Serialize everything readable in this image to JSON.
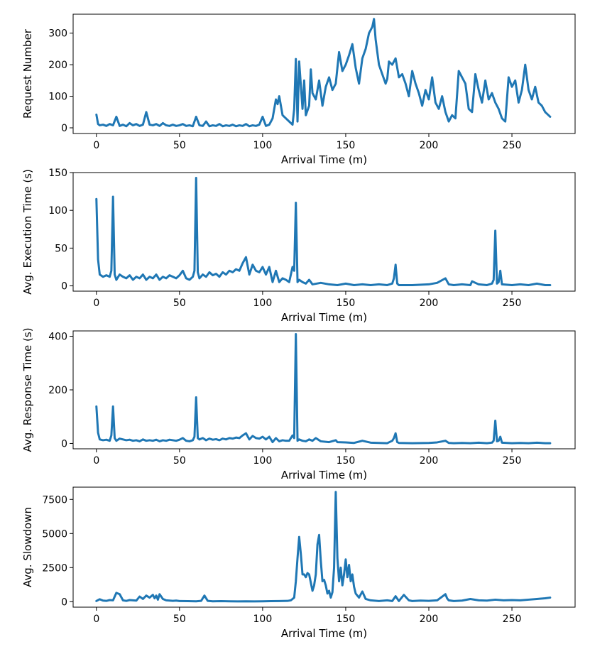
{
  "chart_data": [
    {
      "type": "line",
      "xlabel": "Arrival Time (m)",
      "ylabel": "Request Number",
      "xlim": [
        -14,
        288
      ],
      "ylim": [
        -18,
        360
      ],
      "xticks": [
        0,
        50,
        100,
        150,
        200,
        250
      ],
      "xtick_labels": [
        "0",
        "50",
        "100",
        "150",
        "200",
        "250"
      ],
      "yticks": [
        0,
        100,
        200,
        300
      ],
      "ytick_labels": [
        "0",
        "100",
        "200",
        "300"
      ],
      "color": "#1f77b4",
      "series": [
        {
          "name": "Request Number",
          "x": [
            0,
            1,
            2,
            4,
            6,
            8,
            10,
            12,
            14,
            16,
            18,
            20,
            22,
            24,
            26,
            28,
            30,
            32,
            34,
            36,
            38,
            40,
            42,
            44,
            46,
            48,
            50,
            52,
            54,
            56,
            58,
            60,
            62,
            64,
            66,
            68,
            70,
            72,
            74,
            76,
            78,
            80,
            82,
            84,
            86,
            88,
            90,
            92,
            94,
            96,
            98,
            100,
            102,
            104,
            106,
            108,
            109,
            110,
            112,
            114,
            116,
            118,
            119,
            120,
            121,
            122,
            124,
            125,
            126,
            128,
            129,
            130,
            132,
            134,
            136,
            138,
            140,
            142,
            144,
            146,
            148,
            150,
            152,
            154,
            156,
            158,
            160,
            162,
            164,
            166,
            167,
            168,
            170,
            172,
            174,
            175,
            176,
            178,
            180,
            182,
            184,
            186,
            188,
            190,
            192,
            194,
            196,
            198,
            200,
            202,
            204,
            206,
            208,
            210,
            212,
            214,
            216,
            218,
            220,
            222,
            224,
            226,
            228,
            230,
            232,
            234,
            236,
            238,
            240,
            242,
            244,
            246,
            248,
            250,
            252,
            254,
            256,
            258,
            260,
            262,
            264,
            266,
            268,
            270,
            272,
            273
          ],
          "y": [
            42,
            12,
            8,
            10,
            6,
            12,
            8,
            35,
            6,
            10,
            5,
            15,
            8,
            12,
            6,
            10,
            50,
            10,
            8,
            12,
            6,
            15,
            8,
            6,
            10,
            6,
            8,
            12,
            6,
            8,
            5,
            35,
            8,
            6,
            20,
            5,
            8,
            6,
            12,
            5,
            8,
            6,
            10,
            5,
            8,
            6,
            12,
            5,
            8,
            6,
            10,
            35,
            6,
            10,
            30,
            90,
            75,
            100,
            40,
            30,
            20,
            10,
            60,
            218,
            20,
            210,
            60,
            150,
            40,
            70,
            185,
            110,
            90,
            150,
            70,
            130,
            160,
            120,
            140,
            240,
            180,
            200,
            230,
            265,
            190,
            140,
            220,
            250,
            300,
            320,
            345,
            280,
            200,
            170,
            140,
            155,
            210,
            200,
            220,
            160,
            170,
            140,
            100,
            180,
            140,
            110,
            70,
            120,
            90,
            160,
            80,
            60,
            100,
            50,
            20,
            40,
            30,
            180,
            160,
            140,
            60,
            50,
            170,
            120,
            80,
            150,
            90,
            110,
            80,
            60,
            30,
            20,
            160,
            130,
            150,
            80,
            120,
            200,
            120,
            90,
            130,
            80,
            70,
            50,
            40,
            35
          ]
        }
      ]
    },
    {
      "type": "line",
      "xlabel": "Arrival Time (m)",
      "ylabel": "Avg. Execution Time (s)",
      "xlim": [
        -14,
        288
      ],
      "ylim": [
        -7,
        150
      ],
      "xticks": [
        0,
        50,
        100,
        150,
        200,
        250
      ],
      "xtick_labels": [
        "0",
        "50",
        "100",
        "150",
        "200",
        "250"
      ],
      "yticks": [
        0,
        50,
        100,
        150
      ],
      "ytick_labels": [
        "0",
        "50",
        "100",
        "150"
      ],
      "color": "#1f77b4",
      "series": [
        {
          "name": "Avg. Execution Time",
          "x": [
            0,
            1,
            2,
            4,
            6,
            8,
            9,
            10,
            11,
            12,
            14,
            16,
            18,
            20,
            22,
            24,
            26,
            28,
            30,
            32,
            34,
            36,
            38,
            40,
            42,
            44,
            46,
            48,
            50,
            52,
            54,
            56,
            58,
            59,
            60,
            61,
            62,
            64,
            66,
            68,
            70,
            72,
            74,
            76,
            78,
            80,
            82,
            84,
            86,
            88,
            90,
            92,
            94,
            96,
            98,
            100,
            102,
            104,
            106,
            108,
            110,
            112,
            114,
            116,
            118,
            119,
            120,
            121,
            122,
            124,
            126,
            128,
            130,
            135,
            140,
            145,
            150,
            155,
            160,
            165,
            170,
            175,
            178,
            179,
            180,
            181,
            182,
            190,
            200,
            205,
            210,
            212,
            215,
            220,
            225,
            226,
            230,
            235,
            238,
            239,
            240,
            241,
            242,
            243,
            244,
            250,
            255,
            260,
            265,
            270,
            273
          ],
          "y": [
            115,
            35,
            15,
            12,
            14,
            12,
            20,
            118,
            15,
            8,
            15,
            12,
            10,
            14,
            8,
            12,
            10,
            15,
            8,
            12,
            10,
            15,
            8,
            12,
            10,
            14,
            12,
            10,
            14,
            20,
            10,
            8,
            12,
            20,
            143,
            18,
            10,
            15,
            12,
            18,
            14,
            16,
            12,
            18,
            15,
            20,
            18,
            22,
            20,
            30,
            38,
            15,
            28,
            20,
            18,
            25,
            15,
            25,
            5,
            20,
            5,
            10,
            8,
            5,
            25,
            20,
            110,
            5,
            8,
            5,
            3,
            8,
            2,
            4,
            2,
            1,
            3,
            1,
            2,
            1,
            2,
            1,
            3,
            10,
            28,
            3,
            1,
            1,
            2,
            4,
            10,
            2,
            1,
            2,
            1,
            6,
            2,
            1,
            3,
            8,
            73,
            3,
            5,
            20,
            2,
            1,
            2,
            1,
            3,
            1,
            1
          ]
        }
      ]
    },
    {
      "type": "line",
      "xlabel": "Arrival Time (m)",
      "ylabel": "Avg. Response Time (s)",
      "xlim": [
        -14,
        288
      ],
      "ylim": [
        -20,
        420
      ],
      "xticks": [
        0,
        50,
        100,
        150,
        200,
        250
      ],
      "xtick_labels": [
        "0",
        "50",
        "100",
        "150",
        "200",
        "250"
      ],
      "yticks": [
        0,
        200,
        400
      ],
      "ytick_labels": [
        "0",
        "200",
        "400"
      ],
      "color": "#1f77b4",
      "series": [
        {
          "name": "Avg. Response Time",
          "x": [
            0,
            1,
            2,
            4,
            6,
            8,
            9,
            10,
            11,
            12,
            14,
            16,
            18,
            20,
            22,
            24,
            26,
            28,
            30,
            32,
            34,
            36,
            38,
            40,
            42,
            44,
            46,
            48,
            50,
            52,
            54,
            56,
            58,
            59,
            60,
            61,
            62,
            64,
            66,
            68,
            70,
            72,
            74,
            76,
            78,
            80,
            82,
            84,
            86,
            88,
            90,
            92,
            94,
            96,
            98,
            100,
            102,
            104,
            106,
            108,
            110,
            112,
            114,
            116,
            118,
            119,
            120,
            121,
            122,
            124,
            126,
            128,
            130,
            132,
            135,
            140,
            144,
            145,
            150,
            155,
            160,
            165,
            170,
            175,
            178,
            179,
            180,
            181,
            182,
            190,
            200,
            205,
            210,
            212,
            215,
            220,
            225,
            230,
            235,
            238,
            239,
            240,
            241,
            242,
            243,
            244,
            250,
            255,
            260,
            265,
            270,
            273
          ],
          "y": [
            138,
            40,
            15,
            12,
            14,
            10,
            30,
            138,
            20,
            10,
            18,
            15,
            12,
            14,
            10,
            12,
            8,
            15,
            10,
            12,
            10,
            14,
            8,
            12,
            10,
            14,
            12,
            10,
            14,
            20,
            10,
            8,
            12,
            25,
            172,
            20,
            15,
            20,
            12,
            18,
            14,
            16,
            12,
            18,
            15,
            20,
            18,
            22,
            20,
            30,
            38,
            15,
            28,
            20,
            18,
            25,
            15,
            25,
            5,
            20,
            8,
            12,
            10,
            10,
            30,
            20,
            408,
            10,
            15,
            10,
            8,
            15,
            10,
            20,
            8,
            5,
            12,
            5,
            4,
            2,
            10,
            3,
            2,
            1,
            10,
            20,
            38,
            5,
            2,
            1,
            2,
            4,
            10,
            2,
            1,
            2,
            1,
            3,
            1,
            3,
            10,
            85,
            8,
            10,
            25,
            3,
            1,
            2,
            1,
            3,
            1,
            1
          ]
        }
      ]
    },
    {
      "type": "line",
      "xlabel": "Arrival Time (m)",
      "ylabel": "Avg. Slowdown",
      "xlim": [
        -14,
        288
      ],
      "ylim": [
        -400,
        8400
      ],
      "xticks": [
        0,
        50,
        100,
        150,
        200,
        250
      ],
      "xtick_labels": [
        "0",
        "50",
        "100",
        "150",
        "200",
        "250"
      ],
      "yticks": [
        0,
        2500,
        5000,
        7500
      ],
      "ytick_labels": [
        "0",
        "2500",
        "5000",
        "7500"
      ],
      "color": "#1f77b4",
      "series": [
        {
          "name": "Avg. Slowdown",
          "x": [
            0,
            2,
            4,
            6,
            8,
            10,
            12,
            14,
            16,
            18,
            20,
            22,
            24,
            26,
            28,
            30,
            32,
            34,
            35,
            36,
            37,
            38,
            40,
            42,
            44,
            46,
            48,
            50,
            55,
            60,
            63,
            65,
            67,
            70,
            75,
            80,
            85,
            90,
            95,
            100,
            105,
            110,
            115,
            117,
            119,
            120,
            121,
            122,
            123,
            124,
            125,
            126,
            127,
            128,
            130,
            131,
            132,
            133,
            134,
            135,
            136,
            137,
            138,
            139,
            140,
            141,
            142,
            143,
            144,
            145,
            146,
            147,
            148,
            149,
            150,
            151,
            152,
            153,
            154,
            155,
            156,
            158,
            160,
            162,
            165,
            170,
            175,
            178,
            180,
            182,
            185,
            188,
            190,
            195,
            200,
            205,
            210,
            211,
            212,
            215,
            220,
            225,
            230,
            235,
            240,
            245,
            250,
            255,
            260,
            265,
            270,
            273
          ],
          "y": [
            50,
            180,
            80,
            60,
            120,
            100,
            650,
            550,
            100,
            60,
            120,
            100,
            80,
            380,
            200,
            450,
            300,
            500,
            250,
            450,
            150,
            550,
            200,
            100,
            80,
            60,
            80,
            50,
            40,
            30,
            60,
            450,
            60,
            30,
            40,
            30,
            20,
            30,
            20,
            30,
            40,
            50,
            60,
            100,
            300,
            1500,
            3200,
            4750,
            3500,
            2000,
            2000,
            1800,
            2100,
            2000,
            800,
            1200,
            2000,
            4200,
            4900,
            3000,
            1500,
            1600,
            1200,
            600,
            800,
            300,
            700,
            2500,
            8050,
            3200,
            1500,
            2500,
            1200,
            2000,
            3100,
            1800,
            2700,
            1500,
            2000,
            1100,
            600,
            300,
            750,
            200,
            100,
            50,
            100,
            50,
            400,
            50,
            500,
            100,
            50,
            80,
            60,
            100,
            550,
            250,
            100,
            50,
            80,
            200,
            100,
            80,
            150,
            100,
            120,
            100,
            150,
            200,
            250,
            300
          ]
        }
      ]
    }
  ]
}
